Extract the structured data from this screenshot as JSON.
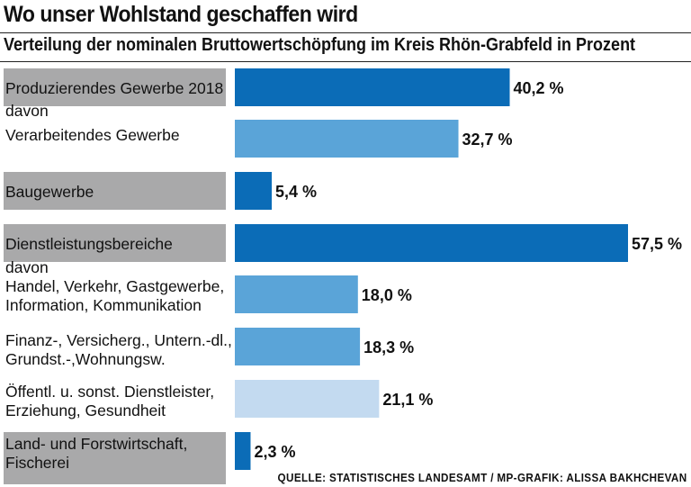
{
  "title": "Wo unser Wohlstand geschaffen wird",
  "subtitle": "Verteilung der nominalen Bruttowertschöpfung im Kreis Rhön-Grabfeld in Prozent",
  "source": "QUELLE: STATISTISCHES LANDESAMT / MP-GRAFIK: ALISSA BAKHCHEVAN",
  "colors": {
    "main": "#0b6cb7",
    "sub_medium": "#5aa4d8",
    "sub_light": "#c3daf0",
    "label_box": "#a9a9aa"
  },
  "chart_data": {
    "type": "bar",
    "orientation": "horizontal",
    "unit": "%",
    "rows": [
      {
        "label": [
          "Produzierendes Gewerbe 2018"
        ],
        "value": 40.2,
        "value_label": "40,2 %",
        "style": "main",
        "box": true
      },
      {
        "label": [
          "davon",
          "Verarbeitendes Gewerbe"
        ],
        "value": 32.7,
        "value_label": "32,7 %",
        "style": "sub_medium",
        "box": false
      },
      {
        "label": [
          "Baugewerbe"
        ],
        "value": 5.4,
        "value_label": "5,4 %",
        "style": "main",
        "box": true
      },
      {
        "label": [
          "Dienstleistungsbereiche"
        ],
        "value": 57.5,
        "value_label": "57,5 %",
        "style": "main",
        "box": true
      },
      {
        "label": [
          "davon",
          "Handel, Verkehr, Gastgewerbe,",
          "Information, Kommunikation"
        ],
        "value": 18.0,
        "value_label": "18,0 %",
        "style": "sub_medium",
        "box": false
      },
      {
        "label": [
          "Finanz-, Versicherg., Untern.-dl.,",
          "Grundst.-,Wohnungsw."
        ],
        "value": 18.3,
        "value_label": "18,3 %",
        "style": "sub_medium",
        "box": false
      },
      {
        "label": [
          "Öffentl. u. sonst. Dienstleister,",
          "Erziehung, Gesundheit"
        ],
        "value": 21.1,
        "value_label": "21,1 %",
        "style": "sub_light",
        "box": false
      },
      {
        "label": [
          "Land- und Forstwirtschaft,",
          "Fischerei"
        ],
        "value": 2.3,
        "value_label": "2,3 %",
        "style": "main",
        "box": true
      }
    ]
  }
}
